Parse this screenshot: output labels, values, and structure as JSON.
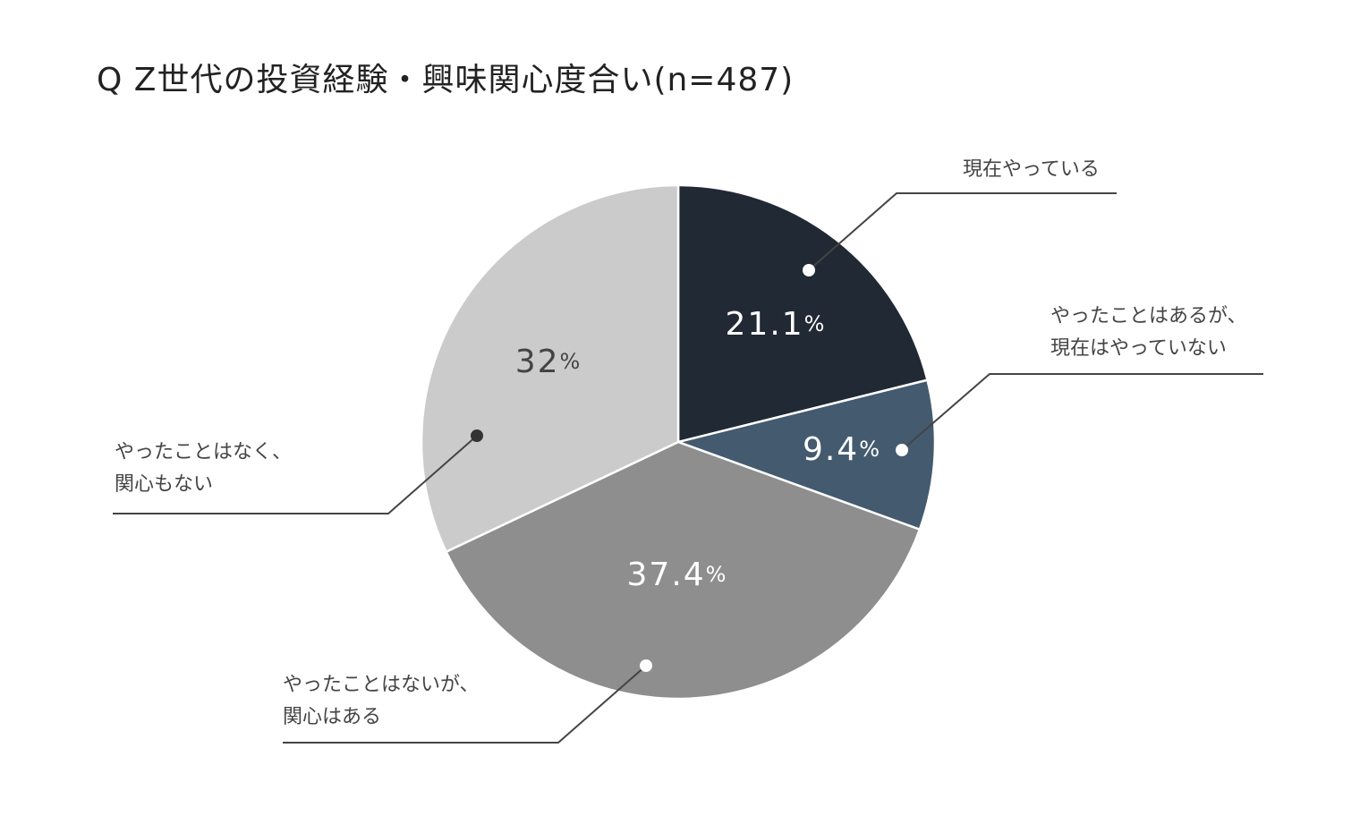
{
  "chart_data": {
    "type": "pie",
    "title": "Q  Z世代の投資経験・興味関心度合い(n=487)",
    "slices": [
      {
        "name": "現在やっている",
        "label_lines": [
          "現在やっている"
        ],
        "value": 21.1,
        "value_label": "21.1",
        "color": "#212935",
        "text_color": "#ffffff",
        "dot_color": "#ffffff"
      },
      {
        "name": "やったことはあるが、現在はやっていない",
        "label_lines": [
          "やったことはあるが、",
          "現在はやっていない"
        ],
        "value": 9.4,
        "value_label": "9.4",
        "color": "#445a6f",
        "text_color": "#ffffff",
        "dot_color": "#ffffff"
      },
      {
        "name": "やったことはないが、関心はある",
        "label_lines": [
          "やったことはないが、",
          "関心はある"
        ],
        "value": 37.4,
        "value_label": "37.4",
        "color": "#8e8e8e",
        "text_color": "#ffffff",
        "dot_color": "#ffffff"
      },
      {
        "name": "やったことはなく、関心もない",
        "label_lines": [
          "やったことはなく、",
          "関心もない"
        ],
        "value": 32,
        "value_label": "32",
        "color": "#cbcbcb",
        "text_color": "#444444",
        "dot_color": "#333333"
      }
    ],
    "percent_symbol": "%",
    "legend": "callouts"
  }
}
